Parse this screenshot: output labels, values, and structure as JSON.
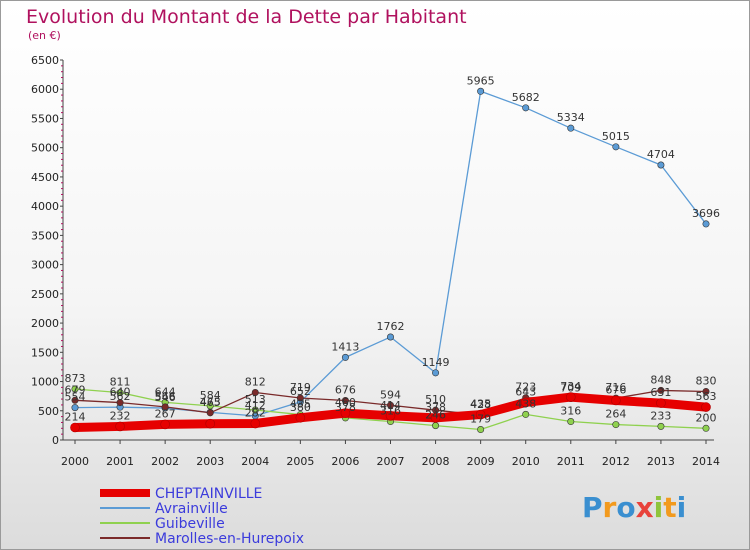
{
  "chart_data": {
    "type": "line",
    "title": "Evolution du Montant de la Dette par Habitant",
    "subtitle": "(en €)",
    "x": [
      "2000",
      "2001",
      "2002",
      "2003",
      "2004",
      "2005",
      "2006",
      "2007",
      "2008",
      "2009",
      "2010",
      "2011",
      "2012",
      "2013",
      "2014"
    ],
    "ylim": [
      0,
      6500
    ],
    "yticks": [
      0,
      500,
      1000,
      1500,
      2000,
      2500,
      3000,
      3500,
      4000,
      4500,
      5000,
      5500,
      6000,
      6500
    ],
    "grid": false,
    "legend": "bottom-left",
    "series": [
      {
        "name": "CHEPTAINVILLE",
        "color": "#e60000",
        "values": [
          214,
          232,
          267,
          279,
          282,
          380,
          460,
          414,
          378,
          435,
          643,
          734,
          676,
          631,
          563
        ]
      },
      {
        "name": "Avrainville",
        "color": "#5b9bd5",
        "values": [
          554,
          562,
          546,
          473,
          412,
          652,
          1413,
          1762,
          1149,
          5965,
          5682,
          5334,
          5015,
          4704,
          3696
        ]
      },
      {
        "name": "Guibeville",
        "color": "#8fd14f",
        "values": [
          873,
          811,
          644,
          584,
          513,
          435,
          378,
          316,
          246,
          179,
          438,
          316,
          264,
          233,
          200
        ]
      },
      {
        "name": "Marolles-en-Hurepoix",
        "color": "#7a2a2a",
        "values": [
          679,
          640,
          566,
          465,
          812,
          719,
          676,
          594,
          510,
          428,
          723,
          709,
          716,
          848,
          830
        ]
      }
    ],
    "point_labels": [
      {
        "x": "2000",
        "y": 873,
        "text": "873"
      },
      {
        "x": "2000",
        "y": 679,
        "text": "679"
      },
      {
        "x": "2000",
        "y": 554,
        "text": "554"
      },
      {
        "x": "2000",
        "y": 214,
        "text": "214"
      },
      {
        "x": "2001",
        "y": 811,
        "text": "811"
      },
      {
        "x": "2001",
        "y": 640,
        "text": "640"
      },
      {
        "x": "2001",
        "y": 562,
        "text": "562"
      },
      {
        "x": "2001",
        "y": 232,
        "text": "232"
      },
      {
        "x": "2002",
        "y": 644,
        "text": "644"
      },
      {
        "x": "2002",
        "y": 566,
        "text": "566"
      },
      {
        "x": "2002",
        "y": 546,
        "text": "546"
      },
      {
        "x": "2002",
        "y": 267,
        "text": "267"
      },
      {
        "x": "2003",
        "y": 584,
        "text": "584"
      },
      {
        "x": "2003",
        "y": 473,
        "text": "473"
      },
      {
        "x": "2003",
        "y": 465,
        "text": "465"
      },
      {
        "x": "2004",
        "y": 812,
        "text": "812"
      },
      {
        "x": "2004",
        "y": 513,
        "text": "513"
      },
      {
        "x": "2004",
        "y": 412,
        "text": "412"
      },
      {
        "x": "2004",
        "y": 282,
        "text": "282"
      },
      {
        "x": "2005",
        "y": 719,
        "text": "719"
      },
      {
        "x": "2005",
        "y": 652,
        "text": "652"
      },
      {
        "x": "2005",
        "y": 435,
        "text": "435"
      },
      {
        "x": "2005",
        "y": 380,
        "text": "380"
      },
      {
        "x": "2006",
        "y": 1413,
        "text": "1413"
      },
      {
        "x": "2006",
        "y": 676,
        "text": "676"
      },
      {
        "x": "2006",
        "y": 460,
        "text": "460"
      },
      {
        "x": "2006",
        "y": 378,
        "text": "378"
      },
      {
        "x": "2007",
        "y": 1762,
        "text": "1762"
      },
      {
        "x": "2007",
        "y": 594,
        "text": "594"
      },
      {
        "x": "2007",
        "y": 414,
        "text": "414"
      },
      {
        "x": "2007",
        "y": 316,
        "text": "316"
      },
      {
        "x": "2008",
        "y": 1149,
        "text": "1149"
      },
      {
        "x": "2008",
        "y": 510,
        "text": "510"
      },
      {
        "x": "2008",
        "y": 378,
        "text": "378"
      },
      {
        "x": "2008",
        "y": 246,
        "text": "246"
      },
      {
        "x": "2009",
        "y": 5965,
        "text": "5965"
      },
      {
        "x": "2009",
        "y": 428,
        "text": "428"
      },
      {
        "x": "2009",
        "y": 435,
        "text": "435"
      },
      {
        "x": "2009",
        "y": 179,
        "text": "179"
      },
      {
        "x": "2010",
        "y": 5682,
        "text": "5682"
      },
      {
        "x": "2010",
        "y": 723,
        "text": "723"
      },
      {
        "x": "2010",
        "y": 643,
        "text": "643"
      },
      {
        "x": "2010",
        "y": 438,
        "text": "438"
      },
      {
        "x": "2011",
        "y": 5334,
        "text": "5334"
      },
      {
        "x": "2011",
        "y": 734,
        "text": "734"
      },
      {
        "x": "2011",
        "y": 709,
        "text": "709"
      },
      {
        "x": "2011",
        "y": 316,
        "text": "316"
      },
      {
        "x": "2012",
        "y": 5015,
        "text": "5015"
      },
      {
        "x": "2012",
        "y": 716,
        "text": "716"
      },
      {
        "x": "2012",
        "y": 676,
        "text": "676"
      },
      {
        "x": "2012",
        "y": 264,
        "text": "264"
      },
      {
        "x": "2013",
        "y": 4704,
        "text": "4704"
      },
      {
        "x": "2013",
        "y": 848,
        "text": "848"
      },
      {
        "x": "2013",
        "y": 631,
        "text": "631"
      },
      {
        "x": "2013",
        "y": 233,
        "text": "233"
      },
      {
        "x": "2014",
        "y": 3696,
        "text": "3696"
      },
      {
        "x": "2014",
        "y": 830,
        "text": "830"
      },
      {
        "x": "2014",
        "y": 563,
        "text": "563"
      },
      {
        "x": "2014",
        "y": 200,
        "text": "200"
      }
    ]
  },
  "legend_items": [
    {
      "label": "CHEPTAINVILLE",
      "color": "#e60000"
    },
    {
      "label": "Avrainville",
      "color": "#5b9bd5"
    },
    {
      "label": "Guibeville",
      "color": "#8fd14f"
    },
    {
      "label": "Marolles-en-Hurepoix",
      "color": "#7a2a2a"
    }
  ],
  "logo": {
    "text": "Proxiti"
  }
}
